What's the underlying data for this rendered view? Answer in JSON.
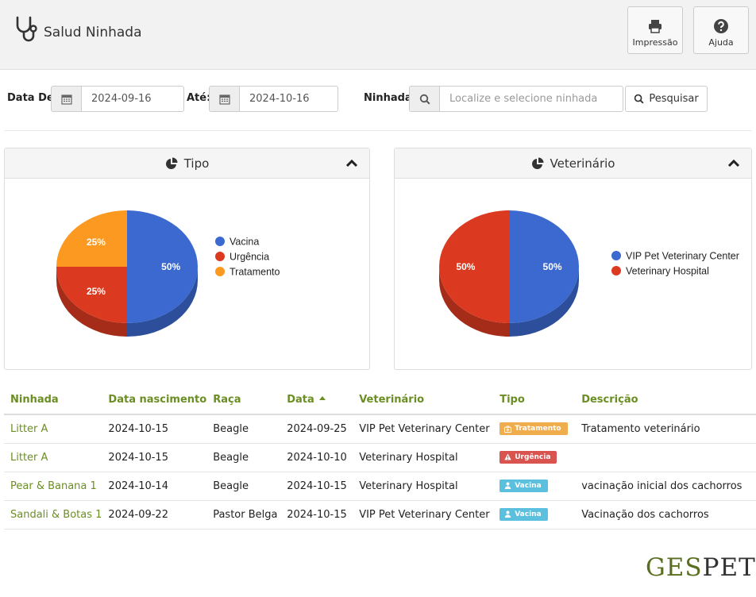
{
  "app": {
    "title": "Salud Ninhada",
    "icon": "stethoscope-icon"
  },
  "toolbar": {
    "print_label": "Impressão",
    "print_icon": "printer-icon",
    "help_label": "Ajuda",
    "help_icon": "question-circle-icon"
  },
  "filters": {
    "date_from_label": "Data De:",
    "date_from_value": "2024-09-16",
    "date_to_label": "Até:",
    "date_to_value": "2024-10-16",
    "litter_label": "Ninhada:",
    "litter_placeholder": "Localize e selecione ninhada",
    "search_button": "Pesquisar"
  },
  "panels": {
    "tipo_title": "Tipo",
    "vet_title": "Veterinário"
  },
  "chart_data": [
    {
      "type": "pie",
      "title": "Tipo",
      "legend_placement": "right",
      "slices": [
        {
          "label": "Vacina",
          "value": 50,
          "color": "#3c69cf"
        },
        {
          "label": "Urgência",
          "value": 25,
          "color": "#dc3a20"
        },
        {
          "label": "Tratamento",
          "value": 25,
          "color": "#fb9920"
        }
      ],
      "slice_labels": [
        "50%",
        "25%",
        "25%"
      ]
    },
    {
      "type": "pie",
      "title": "Veterinário",
      "legend_placement": "right",
      "slices": [
        {
          "label": "VIP Pet Veterinary Center",
          "value": 50,
          "color": "#3c69cf"
        },
        {
          "label": "Veterinary Hospital",
          "value": 50,
          "color": "#dc3a20"
        }
      ],
      "slice_labels": [
        "50%",
        "50%"
      ]
    }
  ],
  "table": {
    "headers": [
      "Ninhada",
      "Data nascimento",
      "Raça",
      "Data",
      "Veterinário",
      "Tipo",
      "Descrição"
    ],
    "sorted_column": "Data",
    "rows": [
      {
        "ninhada": "Litter A",
        "nascimento": "2024-10-15",
        "raca": "Beagle",
        "data": "2024-09-25",
        "vet": "VIP Pet Veterinary Center",
        "tipo": "Tratamento",
        "tipo_color": "#f0ad4e",
        "tipo_icon": "medkit-icon",
        "descricao": "Tratamento veterinário"
      },
      {
        "ninhada": "Litter A",
        "nascimento": "2024-10-15",
        "raca": "Beagle",
        "data": "2024-10-10",
        "vet": "Veterinary Hospital",
        "tipo": "Urgência",
        "tipo_color": "#d9534f",
        "tipo_icon": "warning-icon",
        "descricao": ""
      },
      {
        "ninhada": "Pear & Banana 1",
        "nascimento": "2024-10-14",
        "raca": "Beagle",
        "data": "2024-10-15",
        "vet": "Veterinary Hospital",
        "tipo": "Vacina",
        "tipo_color": "#5bc0de",
        "tipo_icon": "user-md-icon",
        "descricao": "vacinação inicial dos cachorros"
      },
      {
        "ninhada": "Sandali & Botas 1",
        "nascimento": "2024-09-22",
        "raca": "Pastor Belga",
        "data": "2024-10-15",
        "vet": "VIP Pet Veterinary Center",
        "tipo": "Vacina",
        "tipo_color": "#5bc0de",
        "tipo_icon": "user-md-icon",
        "descricao": "Vacinação dos cachorros"
      }
    ]
  },
  "brand": {
    "part1": "GES",
    "part2": "PET"
  }
}
